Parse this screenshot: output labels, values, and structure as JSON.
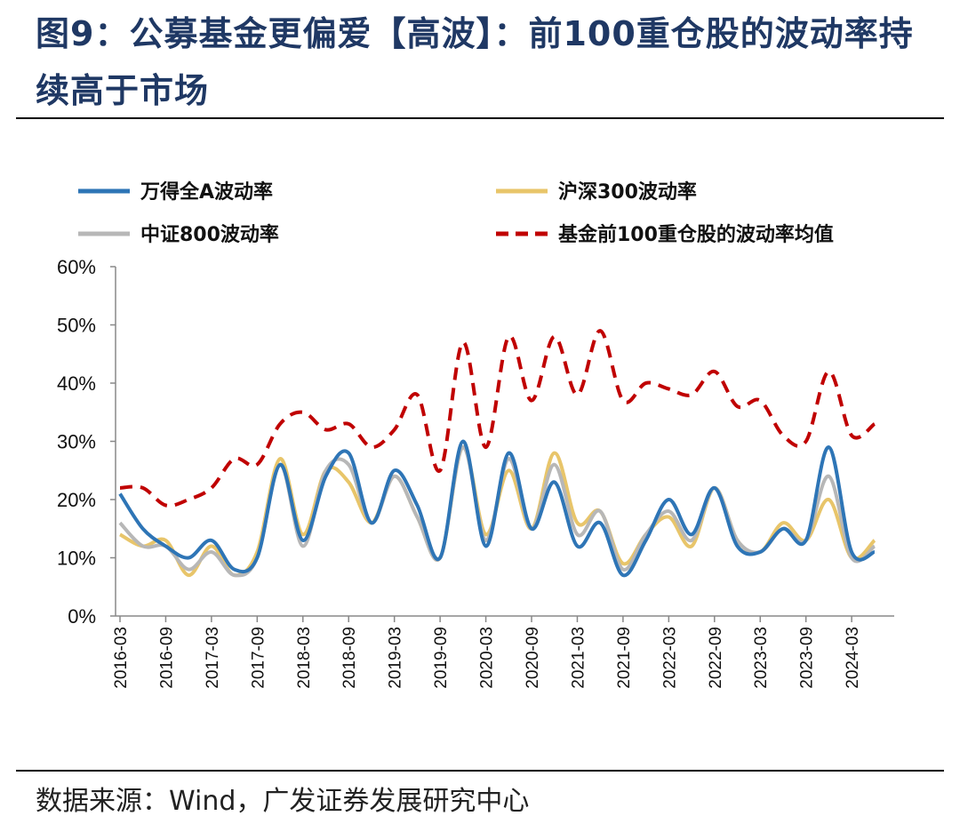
{
  "header": {
    "title": "图9：公募基金更偏爱【高波】：前100重仓股的波动率持续高于市场"
  },
  "footer": {
    "source": "数据来源：Wind，广发证券发展研究中心"
  },
  "colors": {
    "title": "#1f3864",
    "series_wind": "#2e75b6",
    "series_hs300": "#e8c56a",
    "series_zz800": "#b7b7b7",
    "series_fund": "#c00000"
  },
  "chart_data": {
    "type": "line",
    "title": "",
    "xlabel": "",
    "ylabel": "",
    "ylim": [
      0,
      0.6
    ],
    "yticks": [
      "0%",
      "10%",
      "20%",
      "30%",
      "40%",
      "50%",
      "60%"
    ],
    "grid": false,
    "legend_position": "top",
    "x_ticks": [
      "2016-03",
      "2016-09",
      "2017-03",
      "2017-09",
      "2018-03",
      "2018-09",
      "2019-03",
      "2019-09",
      "2020-03",
      "2020-09",
      "2021-03",
      "2021-09",
      "2022-03",
      "2022-09",
      "2023-03",
      "2023-09",
      "2024-03"
    ],
    "x": [
      "2016-03",
      "2016-06",
      "2016-09",
      "2016-12",
      "2017-03",
      "2017-06",
      "2017-09",
      "2017-12",
      "2018-03",
      "2018-06",
      "2018-09",
      "2018-12",
      "2019-03",
      "2019-06",
      "2019-09",
      "2019-12",
      "2020-03",
      "2020-06",
      "2020-09",
      "2020-12",
      "2021-03",
      "2021-06",
      "2021-09",
      "2021-12",
      "2022-03",
      "2022-06",
      "2022-09",
      "2022-12",
      "2023-03",
      "2023-06",
      "2023-09",
      "2023-12",
      "2024-03",
      "2024-06"
    ],
    "series": [
      {
        "name": "万得全A波动率",
        "style": "solid",
        "values": [
          0.21,
          0.15,
          0.12,
          0.1,
          0.13,
          0.08,
          0.1,
          0.26,
          0.13,
          0.24,
          0.28,
          0.16,
          0.25,
          0.19,
          0.1,
          0.3,
          0.12,
          0.28,
          0.15,
          0.23,
          0.12,
          0.16,
          0.07,
          0.13,
          0.2,
          0.14,
          0.22,
          0.12,
          0.11,
          0.15,
          0.13,
          0.29,
          0.11,
          0.11
        ]
      },
      {
        "name": "沪深300波动率",
        "style": "solid",
        "values": [
          0.14,
          0.12,
          0.13,
          0.07,
          0.12,
          0.07,
          0.11,
          0.27,
          0.14,
          0.25,
          0.23,
          0.16,
          0.24,
          0.17,
          0.1,
          0.29,
          0.14,
          0.25,
          0.15,
          0.28,
          0.16,
          0.18,
          0.09,
          0.14,
          0.17,
          0.12,
          0.22,
          0.13,
          0.11,
          0.16,
          0.13,
          0.2,
          0.1,
          0.13
        ]
      },
      {
        "name": "中证800波动率",
        "style": "solid",
        "values": [
          0.16,
          0.12,
          0.12,
          0.08,
          0.11,
          0.07,
          0.1,
          0.26,
          0.12,
          0.25,
          0.26,
          0.16,
          0.24,
          0.17,
          0.1,
          0.29,
          0.13,
          0.27,
          0.15,
          0.26,
          0.14,
          0.18,
          0.08,
          0.14,
          0.18,
          0.13,
          0.22,
          0.13,
          0.11,
          0.15,
          0.13,
          0.24,
          0.1,
          0.12
        ]
      },
      {
        "name": "基金前100重仓股的波动率均值",
        "style": "dashed",
        "values": [
          0.22,
          0.22,
          0.19,
          0.2,
          0.22,
          0.27,
          0.26,
          0.33,
          0.35,
          0.32,
          0.33,
          0.29,
          0.32,
          0.38,
          0.25,
          0.47,
          0.29,
          0.48,
          0.37,
          0.48,
          0.38,
          0.49,
          0.37,
          0.4,
          0.39,
          0.38,
          0.42,
          0.36,
          0.37,
          0.31,
          0.3,
          0.42,
          0.31,
          0.33
        ]
      }
    ]
  }
}
